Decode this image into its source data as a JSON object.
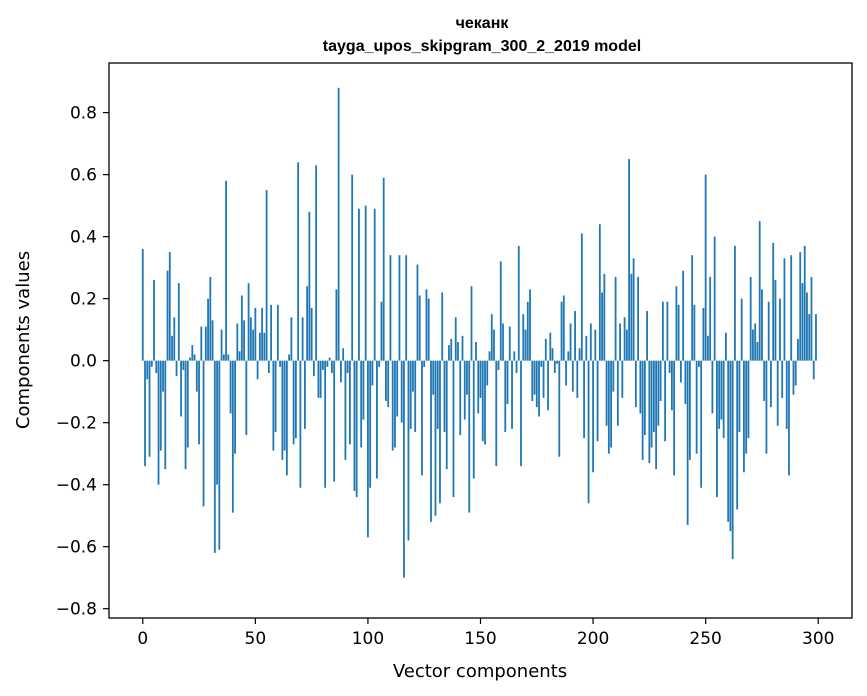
{
  "chart_data": {
    "type": "bar",
    "title": "чеканк",
    "subtitle": "tayga_upos_skipgram_300_2_2019 model",
    "xlabel": "Vector components",
    "ylabel": "Components values",
    "xlim": [
      -15,
      315
    ],
    "ylim": [
      -0.83,
      0.96
    ],
    "x_ticks": [
      0,
      50,
      100,
      150,
      200,
      250,
      300
    ],
    "x_tick_labels": [
      "0",
      "50",
      "100",
      "150",
      "200",
      "250",
      "300"
    ],
    "y_ticks": [
      0.8,
      0.6,
      0.4,
      0.2,
      0.0,
      -0.2,
      -0.4,
      -0.6,
      -0.8
    ],
    "y_tick_labels": [
      "0.8",
      "0.6",
      "0.4",
      "0.2",
      "0.0",
      "−0.2",
      "−0.4",
      "−0.6",
      "−0.8"
    ],
    "bar_color": "#1f77b4",
    "values": [
      0.36,
      -0.34,
      -0.06,
      -0.31,
      -0.02,
      0.26,
      -0.04,
      -0.4,
      -0.29,
      -0.1,
      -0.35,
      0.29,
      0.35,
      0.08,
      0.14,
      -0.05,
      0.25,
      -0.18,
      -0.03,
      -0.35,
      -0.28,
      0.01,
      0.05,
      0.02,
      -0.1,
      -0.27,
      0.11,
      -0.47,
      0.11,
      0.2,
      0.27,
      0.13,
      -0.62,
      -0.4,
      -0.61,
      0.1,
      0.02,
      0.58,
      0.02,
      -0.17,
      -0.49,
      -0.3,
      0.12,
      0.03,
      0.21,
      0.13,
      -0.24,
      0.25,
      0.14,
      0.1,
      0.17,
      -0.06,
      0.09,
      0.17,
      0.09,
      0.55,
      -0.04,
      0.18,
      -0.29,
      -0.23,
      0.18,
      -0.02,
      -0.32,
      -0.29,
      -0.37,
      0.02,
      0.14,
      -0.27,
      -0.25,
      0.64,
      -0.41,
      0.14,
      -0.22,
      0.24,
      0.48,
      0.17,
      -0.05,
      0.63,
      -0.12,
      -0.12,
      -0.03,
      -0.41,
      -0.02,
      0.01,
      -0.04,
      -0.39,
      0.23,
      0.88,
      -0.07,
      0.04,
      -0.32,
      -0.04,
      -0.27,
      0.6,
      -0.42,
      -0.44,
      0.49,
      -0.28,
      -0.19,
      0.5,
      -0.57,
      -0.41,
      -0.08,
      0.49,
      -0.38,
      -0.02,
      0.19,
      0.59,
      -0.13,
      -0.15,
      0.34,
      -0.29,
      -0.28,
      -0.18,
      0.34,
      -0.2,
      -0.7,
      0.34,
      -0.58,
      -0.22,
      -0.1,
      -0.23,
      0.31,
      0.21,
      -0.37,
      -0.02,
      0.23,
      0.2,
      -0.52,
      -0.11,
      -0.5,
      -0.22,
      -0.46,
      0.22,
      -0.23,
      -0.35,
      0.05,
      0.07,
      -0.44,
      0.14,
      0.06,
      -0.24,
      0.08,
      -0.19,
      -0.11,
      -0.49,
      0.24,
      -0.38,
      0.06,
      -0.17,
      -0.12,
      -0.26,
      -0.27,
      -0.08,
      0.03,
      0.15,
      0.1,
      -0.34,
      -0.03,
      0.32,
      0.12,
      -0.23,
      -0.14,
      0.11,
      -0.22,
      0.03,
      -0.04,
      0.37,
      -0.34,
      0.15,
      0.1,
      0.19,
      0.23,
      -0.13,
      -0.11,
      -0.15,
      -0.18,
      -0.02,
      -0.12,
      0.07,
      -0.16,
      0.09,
      0.04,
      -0.04,
      -0.01,
      -0.31,
      0.19,
      0.21,
      -0.08,
      0.03,
      0.12,
      -0.1,
      0.16,
      -0.12,
      0.04,
      0.41,
      -0.25,
      0.08,
      -0.46,
      0.12,
      -0.36,
      0.1,
      -0.26,
      0.44,
      0.22,
      0.28,
      -0.21,
      -0.3,
      -0.28,
      -0.1,
      0.27,
      -0.21,
      0.12,
      -0.12,
      0.14,
      0.1,
      0.65,
      0.28,
      0.33,
      -0.15,
      0.27,
      -0.17,
      -0.32,
      -0.24,
      0.16,
      -0.33,
      -0.28,
      -0.23,
      -0.35,
      -0.21,
      -0.13,
      0.19,
      -0.26,
      0.19,
      -0.04,
      -0.16,
      -0.37,
      0.24,
      0.18,
      -0.07,
      0.29,
      -0.14,
      -0.53,
      -0.32,
      0.34,
      0.18,
      -0.3,
      -0.02,
      -0.41,
      0.17,
      0.6,
      0.08,
      0.27,
      -0.17,
      0.4,
      -0.44,
      -0.22,
      -0.19,
      -0.25,
      0.09,
      -0.52,
      -0.55,
      -0.64,
      0.37,
      -0.48,
      -0.23,
      0.2,
      -0.36,
      -0.3,
      -0.25,
      0.27,
      0.1,
      0.12,
      0.06,
      0.45,
      0.23,
      -0.13,
      -0.3,
      0.19,
      -0.15,
      0.38,
      0.26,
      -0.21,
      0.2,
      -0.12,
      0.33,
      -0.22,
      -0.37,
      0.34,
      -0.11,
      -0.08,
      0.07,
      0.35,
      0.25,
      0.37,
      0.22,
      0.15,
      0.27,
      -0.06,
      0.15
    ]
  }
}
